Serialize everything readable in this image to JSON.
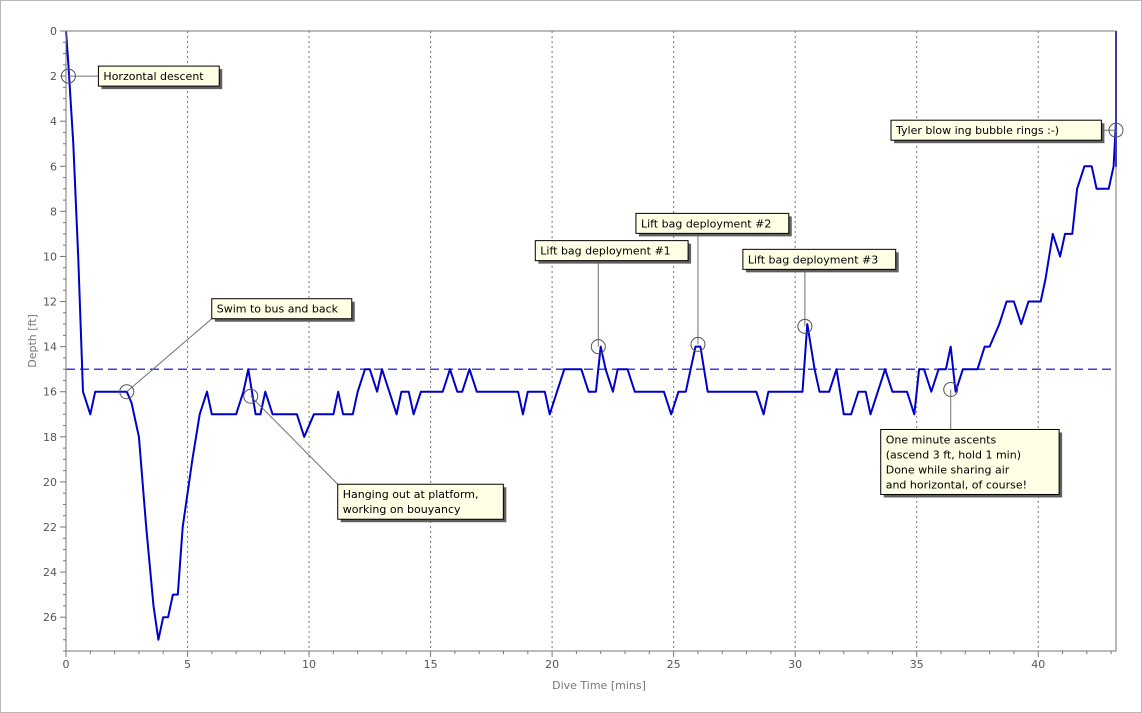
{
  "chart_data": {
    "type": "line",
    "title": "",
    "xlabel": "Dive Time [mins]",
    "ylabel": "Depth [ft]",
    "xlim": [
      0,
      43.2
    ],
    "ylim": [
      0,
      27.5
    ],
    "y_inverted": true,
    "x_ticks": [
      0,
      5,
      10,
      15,
      20,
      25,
      30,
      35,
      40
    ],
    "y_ticks": [
      0,
      2,
      4,
      6,
      8,
      10,
      12,
      14,
      16,
      18,
      20,
      22,
      24,
      26
    ],
    "x_grid": "dotted vertical lines at major ticks",
    "reference_line": {
      "depth": 15,
      "style": "dashed",
      "color": "#0000cc"
    },
    "series": [
      {
        "color": "#0000cc",
        "points": [
          [
            0,
            0
          ],
          [
            0.1,
            1.5
          ],
          [
            0.3,
            5
          ],
          [
            0.5,
            10
          ],
          [
            0.7,
            16
          ],
          [
            1.0,
            17
          ],
          [
            1.2,
            16
          ],
          [
            1.6,
            16
          ],
          [
            2.0,
            16
          ],
          [
            2.5,
            16
          ],
          [
            2.7,
            16.5
          ],
          [
            3.0,
            18
          ],
          [
            3.3,
            22
          ],
          [
            3.6,
            25.5
          ],
          [
            3.8,
            27
          ],
          [
            4.0,
            26
          ],
          [
            4.2,
            26
          ],
          [
            4.4,
            25
          ],
          [
            4.6,
            25
          ],
          [
            4.8,
            22
          ],
          [
            5.2,
            19
          ],
          [
            5.5,
            17
          ],
          [
            5.8,
            16
          ],
          [
            6.0,
            17
          ],
          [
            6.5,
            17
          ],
          [
            7.0,
            17
          ],
          [
            7.3,
            16
          ],
          [
            7.5,
            15
          ],
          [
            7.8,
            17
          ],
          [
            8.0,
            17
          ],
          [
            8.2,
            16
          ],
          [
            8.5,
            17
          ],
          [
            9.0,
            17
          ],
          [
            9.5,
            17
          ],
          [
            9.8,
            18
          ],
          [
            10.2,
            17
          ],
          [
            10.5,
            17
          ],
          [
            11.0,
            17
          ],
          [
            11.2,
            16
          ],
          [
            11.4,
            17
          ],
          [
            11.8,
            17
          ],
          [
            12.0,
            16
          ],
          [
            12.3,
            15
          ],
          [
            12.5,
            15
          ],
          [
            12.8,
            16
          ],
          [
            13.0,
            15
          ],
          [
            13.3,
            16
          ],
          [
            13.6,
            17
          ],
          [
            13.8,
            16
          ],
          [
            14.1,
            16
          ],
          [
            14.3,
            17
          ],
          [
            14.6,
            16
          ],
          [
            14.8,
            16
          ],
          [
            15.2,
            16
          ],
          [
            15.5,
            16
          ],
          [
            15.8,
            15
          ],
          [
            16.1,
            16
          ],
          [
            16.3,
            16
          ],
          [
            16.6,
            15
          ],
          [
            16.9,
            16
          ],
          [
            17.2,
            16
          ],
          [
            17.6,
            16
          ],
          [
            18.2,
            16
          ],
          [
            18.6,
            16
          ],
          [
            18.8,
            17
          ],
          [
            19.0,
            16
          ],
          [
            19.3,
            16
          ],
          [
            19.7,
            16
          ],
          [
            19.9,
            17
          ],
          [
            20.2,
            16
          ],
          [
            20.5,
            15
          ],
          [
            20.8,
            15
          ],
          [
            21.2,
            15
          ],
          [
            21.5,
            16
          ],
          [
            21.8,
            16
          ],
          [
            22.0,
            14
          ],
          [
            22.2,
            15
          ],
          [
            22.5,
            16
          ],
          [
            22.7,
            15
          ],
          [
            23.1,
            15
          ],
          [
            23.4,
            16
          ],
          [
            23.8,
            16
          ],
          [
            24.2,
            16
          ],
          [
            24.6,
            16
          ],
          [
            24.9,
            17
          ],
          [
            25.2,
            16
          ],
          [
            25.5,
            16
          ],
          [
            25.9,
            14
          ],
          [
            26.1,
            14
          ],
          [
            26.4,
            16
          ],
          [
            26.8,
            16
          ],
          [
            27.2,
            16
          ],
          [
            27.6,
            16
          ],
          [
            28.0,
            16
          ],
          [
            28.4,
            16
          ],
          [
            28.7,
            17
          ],
          [
            28.9,
            16
          ],
          [
            29.2,
            16
          ],
          [
            29.6,
            16
          ],
          [
            30.0,
            16
          ],
          [
            30.3,
            16
          ],
          [
            30.5,
            13
          ],
          [
            30.8,
            15
          ],
          [
            31.0,
            16
          ],
          [
            31.4,
            16
          ],
          [
            31.7,
            15
          ],
          [
            32.0,
            17
          ],
          [
            32.3,
            17
          ],
          [
            32.6,
            16
          ],
          [
            32.9,
            16
          ],
          [
            33.1,
            17
          ],
          [
            33.4,
            16
          ],
          [
            33.7,
            15
          ],
          [
            34.0,
            16
          ],
          [
            34.3,
            16
          ],
          [
            34.6,
            16
          ],
          [
            34.9,
            17
          ],
          [
            35.1,
            15
          ],
          [
            35.3,
            15
          ],
          [
            35.6,
            16
          ],
          [
            35.9,
            15
          ],
          [
            36.2,
            15
          ],
          [
            36.4,
            14
          ],
          [
            36.6,
            16
          ],
          [
            36.9,
            15
          ],
          [
            37.2,
            15
          ],
          [
            37.5,
            15
          ],
          [
            37.8,
            14
          ],
          [
            38.0,
            14
          ],
          [
            38.4,
            13
          ],
          [
            38.7,
            12
          ],
          [
            39.0,
            12
          ],
          [
            39.3,
            13
          ],
          [
            39.6,
            12
          ],
          [
            39.8,
            12
          ],
          [
            40.1,
            12
          ],
          [
            40.3,
            11
          ],
          [
            40.6,
            9
          ],
          [
            40.9,
            10
          ],
          [
            41.1,
            9
          ],
          [
            41.4,
            9
          ],
          [
            41.6,
            7
          ],
          [
            41.9,
            6
          ],
          [
            42.2,
            6
          ],
          [
            42.4,
            7
          ],
          [
            42.7,
            7
          ],
          [
            42.9,
            7
          ],
          [
            43.1,
            6
          ],
          [
            43.3,
            4
          ],
          [
            43.5,
            6
          ],
          [
            43.8,
            4.5
          ],
          [
            44.0,
            0
          ]
        ]
      }
    ],
    "annotations": [
      {
        "lines": [
          "Horzontal descent"
        ],
        "x": 0.1,
        "y": 2
      },
      {
        "lines": [
          "Swim to bus and back"
        ],
        "x": 2.5,
        "y": 16
      },
      {
        "lines": [
          "Hanging out at platform,",
          "working on bouyancy"
        ],
        "x": 7.6,
        "y": 16.2
      },
      {
        "lines": [
          "Lift bag deployment #1"
        ],
        "x": 21.9,
        "y": 14
      },
      {
        "lines": [
          "Lift bag deployment #2"
        ],
        "x": 26.0,
        "y": 13.9
      },
      {
        "lines": [
          "Lift bag deployment #3"
        ],
        "x": 30.4,
        "y": 13.1
      },
      {
        "lines": [
          "One minute ascents",
          "(ascend 3 ft, hold 1 min)",
          "Done while sharing air",
          "and horizontal, of course!"
        ],
        "x": 36.4,
        "y": 15.9
      },
      {
        "lines": [
          "Tyler blow ing bubble rings :-)"
        ],
        "x": 43.5,
        "y": 4.4
      }
    ]
  }
}
